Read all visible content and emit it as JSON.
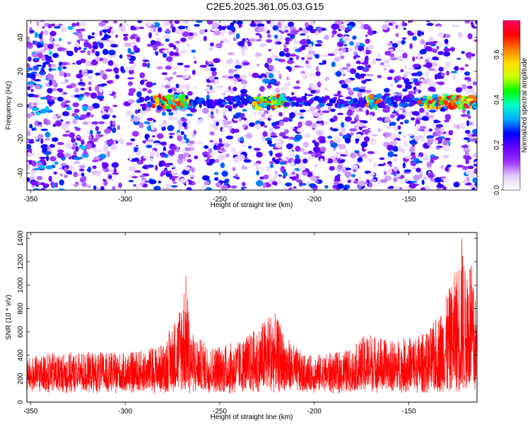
{
  "title": "C2E5.2025.361.05.03.G15",
  "chart_data": [
    {
      "type": "heatmap",
      "xlabel": "Height of straight line (km)",
      "ylabel": "Frequency (Hz)",
      "xlim": [
        -352,
        -114
      ],
      "ylim": [
        -50,
        50
      ],
      "xticks": [
        -350,
        -300,
        -250,
        -200,
        -150
      ],
      "yticks": [
        -40,
        -20,
        0,
        20,
        40
      ],
      "colorbar": {
        "label": "Normalized spectral amplitude",
        "range": [
          0.0,
          0.75
        ],
        "ticks": [
          0.0,
          0.2,
          0.4,
          0.6
        ],
        "colors": [
          "#ffffff",
          "#e6ccff",
          "#9933ff",
          "#6600ff",
          "#0000ff",
          "#00aaff",
          "#00ffcc",
          "#00ff00",
          "#ccff00",
          "#ffdd00",
          "#ff7700",
          "#ff0000",
          "#ff0066"
        ]
      },
      "features": {
        "signal_band_frequency_hz": 2,
        "signal_band_start_km": -293,
        "strong_segments_km": [
          [
            -285,
            -265
          ],
          [
            -232,
            -215
          ],
          [
            -172,
            -165
          ],
          [
            -142,
            -114
          ]
        ]
      }
    },
    {
      "type": "line",
      "xlabel": "Height of straight line (km)",
      "ylabel": "SNR (10 * v/v)",
      "xlim": [
        -352,
        -114
      ],
      "ylim": [
        0,
        1450
      ],
      "xticks": [
        -350,
        -300,
        -250,
        -200,
        -150
      ],
      "yticks": [
        0,
        200,
        400,
        600,
        800,
        1000,
        1200,
        1400
      ],
      "color": "#ff0000",
      "envelope": {
        "x": [
          -352,
          -340,
          -320,
          -300,
          -290,
          -280,
          -272,
          -268,
          -265,
          -255,
          -240,
          -230,
          -222,
          -215,
          -205,
          -190,
          -180,
          -172,
          -165,
          -160,
          -150,
          -140,
          -133,
          -128,
          -124,
          -122,
          -120,
          -118,
          -116,
          -114
        ],
        "y": [
          380,
          420,
          430,
          420,
          450,
          500,
          780,
          1110,
          600,
          480,
          520,
          640,
          800,
          560,
          400,
          420,
          460,
          600,
          560,
          520,
          560,
          600,
          800,
          1000,
          1200,
          1440,
          1100,
          1380,
          1050,
          800
        ]
      }
    }
  ]
}
